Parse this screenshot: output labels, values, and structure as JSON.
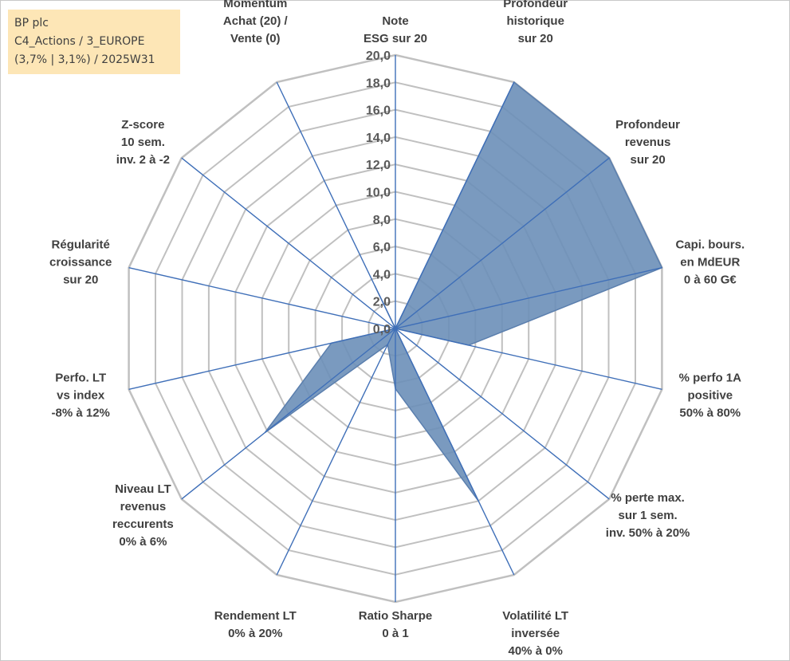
{
  "title": {
    "line1": "BP plc",
    "line2": "C4_Actions / 3_EUROPE",
    "line3": "(3,7% | 3,1%) / 2025W31"
  },
  "chart_data": {
    "type": "radar",
    "scale": {
      "min": 0,
      "max": 20,
      "step": 2
    },
    "tick_labels": [
      "0,0",
      "2,0",
      "4,0",
      "6,0",
      "8,0",
      "10,0",
      "12,0",
      "14,0",
      "16,0",
      "18,0",
      "20,0"
    ],
    "grid": true,
    "axes": [
      {
        "label": [
          "Note",
          "ESG sur 20"
        ],
        "value": 0
      },
      {
        "label": [
          "Profondeur",
          "historique",
          "sur 20"
        ],
        "value": 20
      },
      {
        "label": [
          "Profondeur",
          "revenus",
          "sur 20"
        ],
        "value": 20
      },
      {
        "label": [
          "Capi. bours.",
          "en MdEUR",
          "0 à 60 G€"
        ],
        "value": 20
      },
      {
        "label": [
          "% perfo 1A",
          "positive",
          "50% à 80%"
        ],
        "value": 5.5
      },
      {
        "label": [
          "% perte max.",
          "sur 1 sem.",
          "inv. 50% à 20%"
        ],
        "value": 0
      },
      {
        "label": [
          "Volatilité LT",
          "inversée",
          "40% à 0%"
        ],
        "value": 14
      },
      {
        "label": [
          "Ratio Sharpe",
          "0 à 1"
        ],
        "value": 4.4
      },
      {
        "label": [
          "Rendement LT",
          "0% à 20%"
        ],
        "value": 1.3
      },
      {
        "label": [
          "Niveau LT",
          "revenus",
          "reccurents",
          "0% à 6%"
        ],
        "value": 12.2
      },
      {
        "label": [
          "Perfo. LT",
          "vs index",
          "-8% à 12%"
        ],
        "value": 4.8
      },
      {
        "label": [
          "Régularité",
          "croissance",
          "sur 20"
        ],
        "value": 0
      },
      {
        "label": [
          "Z-score",
          "10 sem.",
          "inv. 2 à -2"
        ],
        "value": 0
      },
      {
        "label": [
          "Momentum",
          "Achat (20) /",
          "Vente (0)"
        ],
        "value": 3.5
      }
    ],
    "series": [
      {
        "values": [
          0,
          20,
          20,
          20,
          5.5,
          0,
          14,
          4.4,
          1.3,
          12.2,
          4.8,
          0,
          0,
          3.5
        ],
        "fill": "#6b8fb8",
        "stroke": "#5b7fae"
      }
    ],
    "colors": {
      "grid": "#c0c0c0",
      "spokes": "#3f6fb8",
      "fill": "#6b8fb8",
      "fill_stroke": "#5b7fae"
    }
  }
}
